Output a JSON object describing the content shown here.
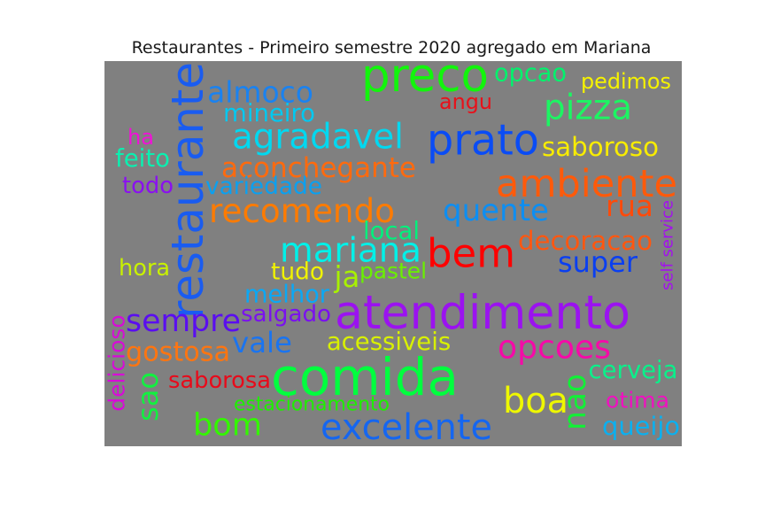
{
  "chart_data": {
    "type": "wordcloud",
    "title": "Restaurantes - Primeiro semestre 2020 agregado em Mariana",
    "background": "#808080",
    "words": [
      {
        "text": "atendimento",
        "color": "#9b12f0"
      },
      {
        "text": "comida",
        "color": "#00ff3e"
      },
      {
        "text": "bem",
        "color": "#ff0000"
      },
      {
        "text": "preco",
        "color": "#12f50c"
      },
      {
        "text": "restaurante",
        "color": "#1a5cf0"
      },
      {
        "text": "ambiente",
        "color": "#ff5a0a"
      },
      {
        "text": "prato",
        "color": "#0a4cf5"
      },
      {
        "text": "recomendo",
        "color": "#ff7b00"
      },
      {
        "text": "mariana",
        "color": "#00f0e8"
      },
      {
        "text": "boa",
        "color": "#eef700"
      },
      {
        "text": "agradavel",
        "color": "#00d8f0"
      },
      {
        "text": "excelente",
        "color": "#1566f0"
      },
      {
        "text": "bom",
        "color": "#33f600"
      },
      {
        "text": "opcoes",
        "color": "#f50aa8"
      },
      {
        "text": "sempre",
        "color": "#5a0ef0"
      },
      {
        "text": "almoco",
        "color": "#1a82f0"
      },
      {
        "text": "quente",
        "color": "#0d8ef2"
      },
      {
        "text": "aconchegante",
        "color": "#ff6a0e"
      },
      {
        "text": "pizza",
        "color": "#1cf562"
      },
      {
        "text": "decoracao",
        "color": "#ff5710"
      },
      {
        "text": "super",
        "color": "#0a3ff0"
      },
      {
        "text": "nao",
        "color": "#12f036"
      },
      {
        "text": "gostosa",
        "color": "#ff7510"
      },
      {
        "text": "vale",
        "color": "#1a74f0"
      },
      {
        "text": "opcao",
        "color": "#00f26c"
      },
      {
        "text": "saboroso",
        "color": "#f8ec00"
      },
      {
        "text": "melhor",
        "color": "#0aa8f5"
      },
      {
        "text": "rua",
        "color": "#ff4a0a"
      },
      {
        "text": "self service",
        "color": "#a40ef0"
      },
      {
        "text": "saborosa",
        "color": "#e80a1a"
      },
      {
        "text": "pedimos",
        "color": "#f5f200"
      },
      {
        "text": "mineiro",
        "color": "#00c8f0"
      },
      {
        "text": "ja",
        "color": "#a8f000"
      },
      {
        "text": "local",
        "color": "#00f07c"
      },
      {
        "text": "salgado",
        "color": "#7a10f0"
      },
      {
        "text": "cerveja",
        "color": "#0af08a"
      },
      {
        "text": "acessiveis",
        "color": "#d8f000"
      },
      {
        "text": "angu",
        "color": "#e8101a"
      },
      {
        "text": "variedade",
        "color": "#0aa0f0"
      },
      {
        "text": "tudo",
        "color": "#f0f200"
      },
      {
        "text": "hora",
        "color": "#c8f000"
      },
      {
        "text": "feito",
        "color": "#0af0b0"
      },
      {
        "text": "todo",
        "color": "#8a10f0"
      },
      {
        "text": "ha",
        "color": "#f010d8"
      },
      {
        "text": "sao",
        "color": "#12f040"
      },
      {
        "text": "otima",
        "color": "#f010c0"
      },
      {
        "text": "queijo",
        "color": "#0ab0f0"
      },
      {
        "text": "pastel",
        "color": "#6af000"
      },
      {
        "text": "delicioso",
        "color": "#d80ad8"
      },
      {
        "text": "estacionamento",
        "color": "#1ef000"
      }
    ]
  }
}
